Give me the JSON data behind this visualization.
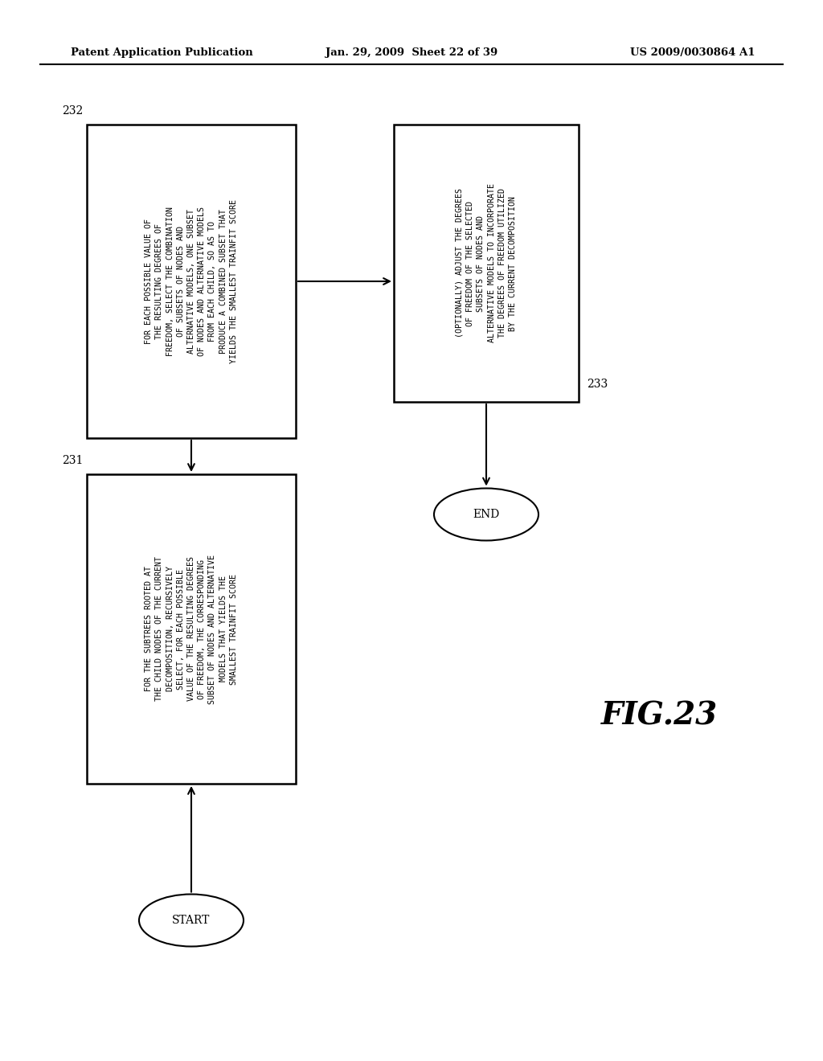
{
  "bg_color": "#ffffff",
  "header_left": "Patent Application Publication",
  "header_center": "Jan. 29, 2009  Sheet 22 of 39",
  "header_right": "US 2009/0030864 A1",
  "fig_label": "FIG.23",
  "box232_text": "FOR EACH POSSIBLE VALUE OF\nTHE RESULTING DEGREES OF\nFREEDOM, SELECT THE COMBINATION\nOF SUBSETS OF NODES AND\nALTERNATIVE MODELS, ONE SUBSET\nOF NODES AND ALTERNATIVE MODELS\nFROM EACH CHILD, SO AS TO\nPRODUCE A COMBINED SUBSET THAT\nYIELDS THE SMALLEST TRAINFIT SCORE",
  "box232_label": "232",
  "box233_text": "(OPTIONALLY) ADJUST THE DEGREES\nOF FREEDOM OF THE SELECTED\nSUBSETS OF NODES AND\nALTERNATIVE MODELS TO INCORPORATE\nTHE DEGREES OF FREEDOM UTILIZED\nBY THE CURRENT DECOMPOSITION",
  "box233_label": "233",
  "box231_text": "FOR THE SUBTREES ROOTED AT\nTHE CHILD NODES OF THE CURRENT\nDECOMPOSITION, RECURSIVELY\nSELECT, FOR EACH POSSIBLE\nVALUE OF THE RESULTING DEGREES\nOF FREEDOM, THE CORRESPONDING\nSUBSET OF NODES AND ALTERNATIVE\nMODELS THAT YIELDS THE\nSMALLEST TRAINFIT SCORE",
  "box231_label": "231",
  "start_label": "START",
  "end_label": "END"
}
